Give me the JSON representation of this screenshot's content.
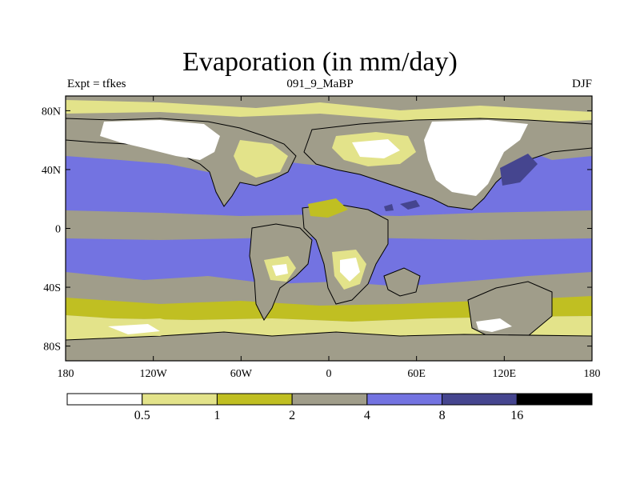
{
  "title": "Evaporation (in mm/day)",
  "subtitle_left": "Expt = tfkes",
  "subtitle_center": "091_9_MaBP",
  "subtitle_right": "DJF",
  "colors": {
    "white": "#ffffff",
    "light_yellow": "#e3e38a",
    "olive": "#c0bf22",
    "gray": "#a09d8a",
    "blue": "#7373e1",
    "dark_blue": "#45458f",
    "black": "#000000"
  },
  "map": {
    "lon_range": [
      -180,
      180
    ],
    "lat_range": [
      -90,
      90
    ],
    "lon_ticks": [
      {
        "value": -180,
        "label": "180"
      },
      {
        "value": -120,
        "label": "120W"
      },
      {
        "value": -60,
        "label": "60W"
      },
      {
        "value": 0,
        "label": "0"
      },
      {
        "value": 60,
        "label": "60E"
      },
      {
        "value": 120,
        "label": "120E"
      },
      {
        "value": 180,
        "label": "180"
      }
    ],
    "lat_ticks": [
      {
        "value": 80,
        "label": "80N"
      },
      {
        "value": 40,
        "label": "40N"
      },
      {
        "value": 0,
        "label": "0"
      },
      {
        "value": -40,
        "label": "40S"
      },
      {
        "value": -80,
        "label": "80S"
      }
    ]
  },
  "colorbar": {
    "colors": [
      "#ffffff",
      "#e3e38a",
      "#c0bf22",
      "#a09d8a",
      "#7373e1",
      "#45458f",
      "#000000"
    ],
    "labels": [
      "0.5",
      "1",
      "2",
      "4",
      "8",
      "16"
    ]
  }
}
